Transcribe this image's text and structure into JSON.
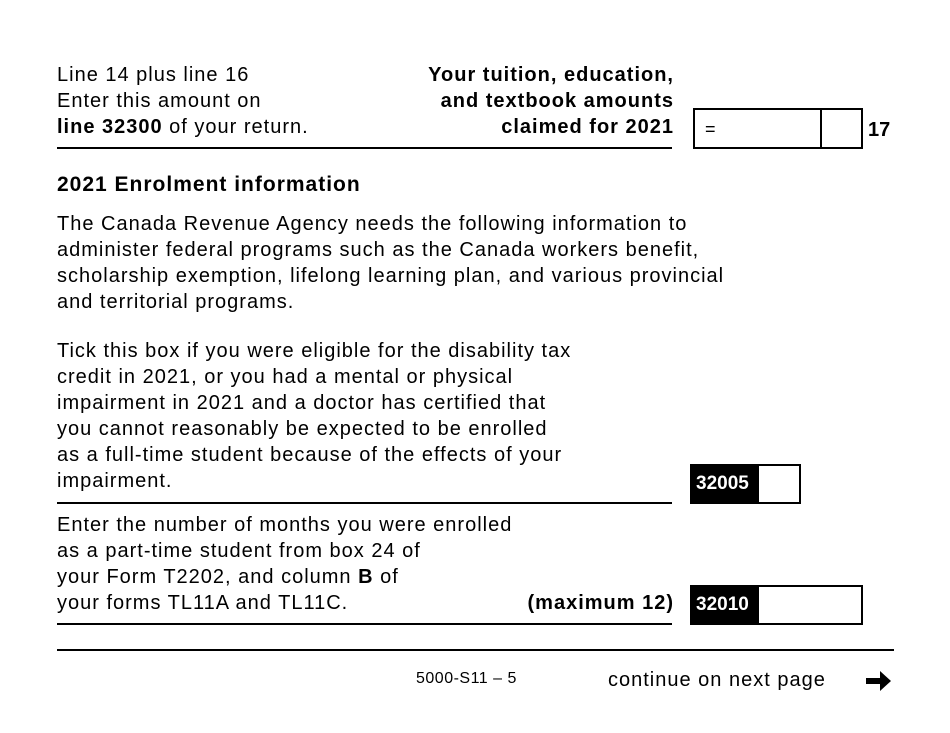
{
  "line17": {
    "left_lines": [
      "Line 14 plus line 16",
      "Enter this amount on"
    ],
    "left_bold": "line 32300",
    "left_rest": " of your return.",
    "right_lines": [
      "Your tuition, education,",
      "and textbook amounts",
      "claimed for 2021"
    ],
    "equals": "=",
    "line_number": "17"
  },
  "enrolment": {
    "heading": "2021 Enrolment information",
    "intro_lines": [
      "The Canada Revenue Agency needs the following information to",
      "administer federal programs such as the Canada workers benefit,",
      "scholarship exemption, lifelong learning plan, and various provincial",
      "and territorial programs."
    ],
    "tick_lines": [
      "Tick this box if you were eligible for the disability tax",
      "credit in 2021, or you had a mental or physical",
      "impairment in 2021 and a doctor has certified that",
      "you cannot reasonably be expected to be enrolled",
      "as a full-time student because of the effects of your",
      "impairment."
    ],
    "tick_code": "32005",
    "months_lines": [
      "Enter the number of months you were enrolled",
      "as a part-time student from box 24 of",
      "your Form T2202, and column "
    ],
    "months_bold_b": "B",
    "months_of": " of",
    "months_last": "your forms TL11A and TL11C.",
    "months_max": "(maximum 12)",
    "months_code": "32010"
  },
  "footer": {
    "form_id": "5000-S11 – 5",
    "continue": "continue on next page",
    "arrow_icon": "right-arrow-icon"
  }
}
